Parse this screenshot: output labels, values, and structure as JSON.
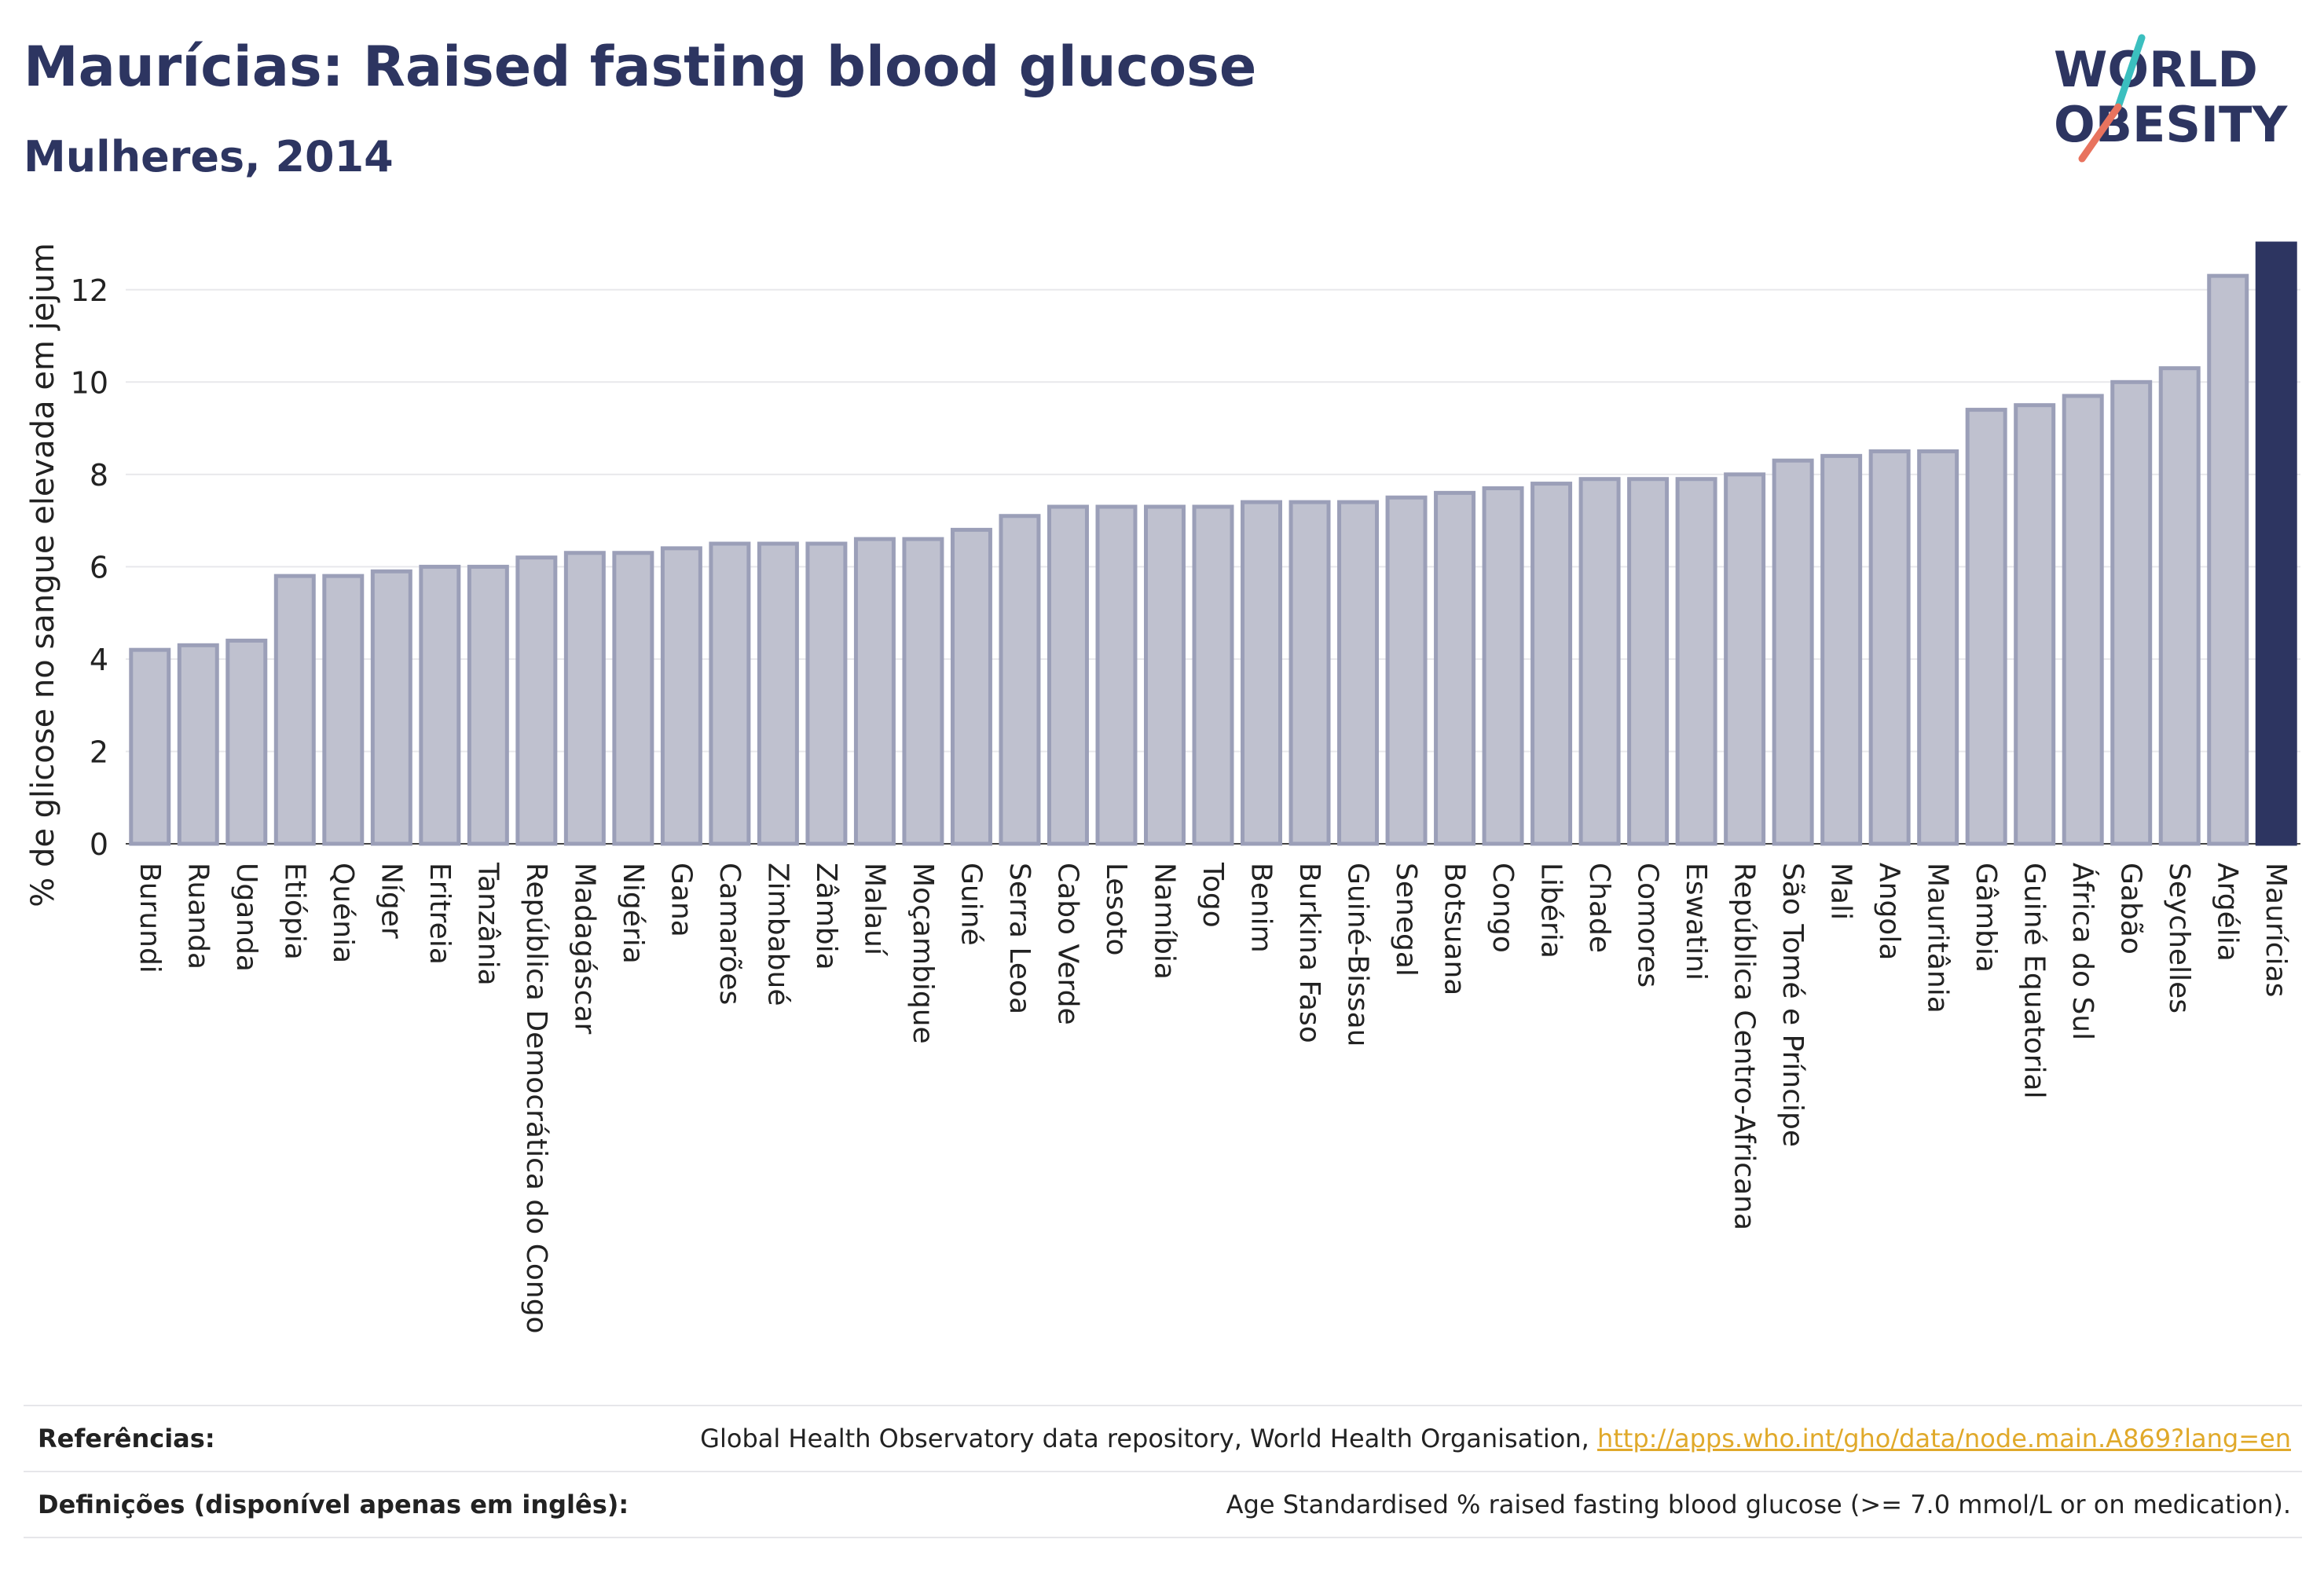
{
  "title": "Maurícias: Raised fasting blood glucose",
  "subtitle": "Mulheres, 2014",
  "logo": {
    "line1": "WORLD",
    "line2": "OBESITY",
    "icon": "world-obesity-logo"
  },
  "colors": {
    "bar": "#bfc1cf",
    "bar_border": "#9b9fb8",
    "highlight": "#2d3561",
    "link": "#e0a92a"
  },
  "chart_data": {
    "type": "bar",
    "ylabel": "% de glicose no sangue elevada em jejum",
    "xlabel": "",
    "ylim": [
      0,
      13
    ],
    "yticks": [
      0,
      2,
      4,
      6,
      8,
      10,
      12
    ],
    "grid": true,
    "highlight": "Maurícias",
    "categories": [
      "Burundi",
      "Ruanda",
      "Uganda",
      "Etiópia",
      "Quénia",
      "Níger",
      "Eritreia",
      "Tanzânia",
      "República Democrática do Congo",
      "Madagáscar",
      "Nigéria",
      "Gana",
      "Camarões",
      "Zimbabué",
      "Zâmbia",
      "Malauí",
      "Moçambique",
      "Guiné",
      "Serra Leoa",
      "Cabo Verde",
      "Lesoto",
      "Namíbia",
      "Togo",
      "Benim",
      "Burkina Faso",
      "Guiné-Bissau",
      "Senegal",
      "Botsuana",
      "Congo",
      "Libéria",
      "Chade",
      "Comores",
      "Eswatini",
      "República Centro-Africana",
      "São Tomé e Príncipe",
      "Mali",
      "Angola",
      "Mauritânia",
      "Gâmbia",
      "Guiné Equatorial",
      "África do Sul",
      "Gabão",
      "Seychelles",
      "Argélia",
      "Maurícias"
    ],
    "values": [
      4.2,
      4.3,
      4.4,
      5.8,
      5.8,
      5.9,
      6.0,
      6.0,
      6.2,
      6.3,
      6.3,
      6.4,
      6.5,
      6.5,
      6.5,
      6.6,
      6.6,
      6.8,
      7.1,
      7.3,
      7.3,
      7.3,
      7.3,
      7.4,
      7.4,
      7.4,
      7.5,
      7.6,
      7.7,
      7.8,
      7.9,
      7.9,
      7.9,
      8.0,
      8.3,
      8.4,
      8.5,
      8.5,
      9.4,
      9.5,
      9.7,
      10.0,
      10.3,
      12.3,
      13.0
    ]
  },
  "references": [
    {
      "label": "Referências:",
      "text": "Global Health Observatory data repository, World Health Organisation, ",
      "link": "http://apps.who.int/gho/data/node.main.A869?lang=en"
    },
    {
      "label": "Definições (disponível apenas em inglês):",
      "text": "Age Standardised % raised fasting blood glucose (>= 7.0 mmol/L or on medication).",
      "link": ""
    }
  ]
}
